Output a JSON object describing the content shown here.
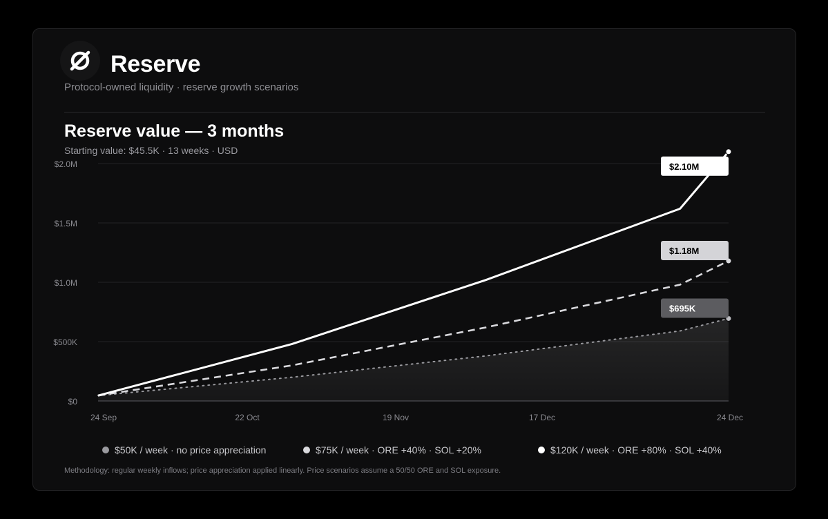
{
  "brand": {
    "name": "Reserve",
    "tagline": "Protocol-owned liquidity · reserve growth scenarios"
  },
  "chart_data": {
    "type": "line",
    "title": "Reserve value — 3 months",
    "subtitle": "Starting value: $45.5K · 13 weeks · USD",
    "xlabel": "",
    "ylabel": "",
    "x_ticks": [
      "24 Sep",
      "22 Oct",
      "19 Nov",
      "17 Dec",
      "24 Dec"
    ],
    "x_range": [
      "2024-09-24",
      "2024-12-24"
    ],
    "ylim": [
      0,
      2000000
    ],
    "y_ticks": [
      0,
      500000,
      1000000,
      1500000,
      2000000
    ],
    "y_tick_labels": [
      "$0",
      "$500K",
      "$1.0M",
      "$1.5M",
      "$2.0M"
    ],
    "grid": true,
    "series": [
      {
        "name": "$50K / week · no price appreciation",
        "style": "dotted",
        "color": "#9a9a9f",
        "area_fill": true,
        "x": [
          "2024-09-24",
          "2024-10-22",
          "2024-11-19",
          "2024-12-17",
          "2024-12-24"
        ],
        "values": [
          45500,
          200000,
          380000,
          590000,
          695000
        ],
        "end_label": "$695K"
      },
      {
        "name": "$75K / week · ORE +40% · SOL +20%",
        "style": "dashed",
        "color": "#d9d9dd",
        "x": [
          "2024-09-24",
          "2024-10-22",
          "2024-11-19",
          "2024-12-17",
          "2024-12-24"
        ],
        "values": [
          45500,
          300000,
          620000,
          980000,
          1180000
        ],
        "end_label": "$1.18M"
      },
      {
        "name": "$120K / week · ORE +80% · SOL +40%",
        "style": "solid",
        "color": "#ffffff",
        "x": [
          "2024-09-24",
          "2024-10-22",
          "2024-11-19",
          "2024-12-17",
          "2024-12-24"
        ],
        "values": [
          45500,
          480000,
          1020000,
          1620000,
          2100000
        ],
        "end_label": "$2.10M"
      }
    ]
  },
  "legend": [
    {
      "label": "$50K / week · no price appreciation",
      "color": "#9a9a9f"
    },
    {
      "label": "$75K / week · ORE +40% · SOL +20%",
      "color": "#d9d9dd"
    },
    {
      "label": "$120K / week · ORE +80% · SOL +40%",
      "color": "#ffffff"
    }
  ],
  "footnote": "Methodology: regular weekly inflows; price appreciation applied linearly. Price scenarios assume a 50/50 ORE and SOL exposure."
}
